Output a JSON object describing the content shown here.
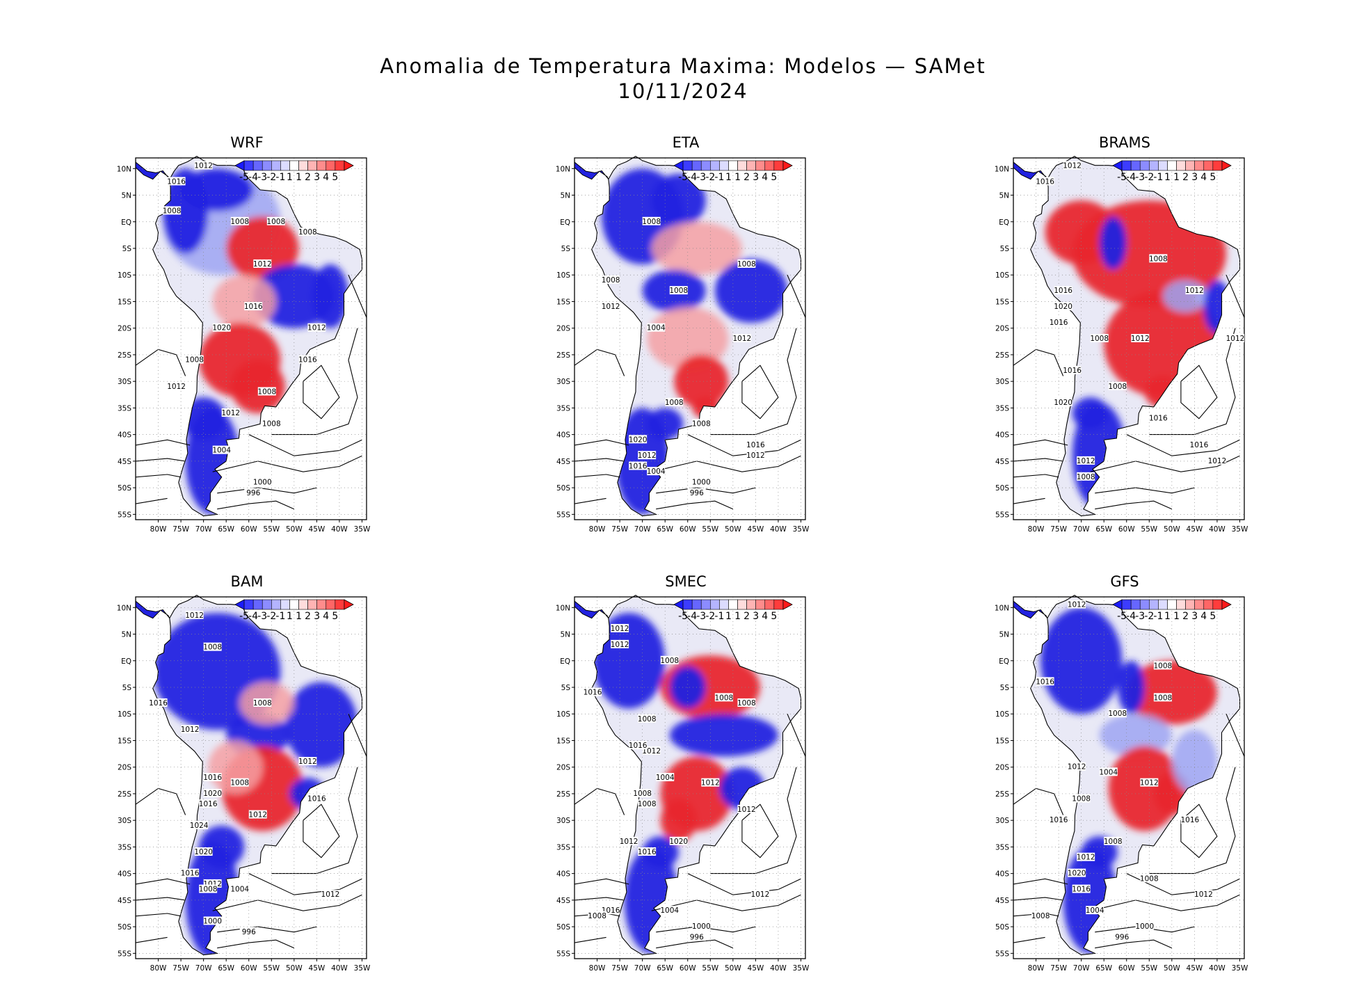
{
  "title": {
    "line1": "Anomalia de Temperatura Maxima: Modelos — SAMet",
    "line2": "10/11/2024"
  },
  "colorbar": {
    "labels": [
      "-5",
      "-4",
      "-3",
      "-2",
      "-1",
      "1",
      "1",
      "2",
      "3",
      "4",
      "5"
    ],
    "colors": [
      "#1b1bff",
      "#3c3cff",
      "#6666ff",
      "#8c8cff",
      "#b4b4ff",
      "#dcdcff",
      "#ffffff",
      "#ffdcdc",
      "#ffb4b4",
      "#ff8c8c",
      "#ff6666",
      "#ff3c3c",
      "#ff1b1b"
    ]
  },
  "axes": {
    "lat_labels": [
      "10N",
      "5N",
      "EQ",
      "5S",
      "10S",
      "15S",
      "20S",
      "25S",
      "30S",
      "35S",
      "40S",
      "45S",
      "50S",
      "55S"
    ],
    "lon_labels": [
      "80W",
      "75W",
      "70W",
      "65W",
      "60W",
      "55W",
      "50W",
      "45W",
      "40W",
      "35W"
    ]
  },
  "panels": [
    {
      "name": "WRF",
      "warm": "#e8282e",
      "cold": "#2222e0",
      "labels": [
        "1012",
        "1016",
        "1008",
        "1008",
        "1008",
        "1008",
        "1012",
        "1016",
        "1020",
        "1008",
        "1012",
        "1012",
        "1008",
        "1004",
        "1000",
        "996",
        "1016",
        "1012",
        "1008"
      ]
    },
    {
      "name": "ETA",
      "warm": "#e8282e",
      "cold": "#2222e0",
      "labels": [
        "1008",
        "1008",
        "1008",
        "1008",
        "1012",
        "1004",
        "1012",
        "1008",
        "1016",
        "1020",
        "1012",
        "1016",
        "1004",
        "1000",
        "996",
        "1012",
        "1008"
      ]
    },
    {
      "name": "BRAMS",
      "warm": "#e8282e",
      "cold": "#2222e0",
      "labels": [
        "1012",
        "1016",
        "1008",
        "1016",
        "1020",
        "1008",
        "1012",
        "1016",
        "1016",
        "1008",
        "1012",
        "1020",
        "1016",
        "1012",
        "1008",
        "1016",
        "1012",
        "1012"
      ]
    },
    {
      "name": "BAM",
      "warm": "#e8282e",
      "cold": "#2222e0",
      "labels": [
        "1012",
        "1008",
        "1008",
        "1016",
        "1012",
        "1008",
        "1012",
        "1016",
        "1020",
        "1016",
        "1024",
        "1020",
        "1016",
        "1012",
        "1008",
        "1004",
        "1000",
        "996",
        "1016",
        "1012",
        "1012"
      ]
    },
    {
      "name": "SMEC",
      "warm": "#e8282e",
      "cold": "#2222e0",
      "labels": [
        "1012",
        "1012",
        "1008",
        "1016",
        "1008",
        "1008",
        "1008",
        "1012",
        "1004",
        "1012",
        "1016",
        "1008",
        "1008",
        "1020",
        "1012",
        "1016",
        "1016",
        "1004",
        "1008",
        "1000",
        "996",
        "1012",
        "1012"
      ]
    },
    {
      "name": "GFS",
      "warm": "#e8282e",
      "cold": "#2222e0",
      "labels": [
        "1012",
        "1016",
        "1008",
        "1008",
        "1008",
        "1012",
        "1004",
        "1012",
        "1008",
        "1016",
        "1008",
        "1012",
        "1020",
        "1016",
        "1004",
        "1008",
        "1000",
        "996",
        "1016",
        "1012",
        "1008"
      ]
    }
  ]
}
